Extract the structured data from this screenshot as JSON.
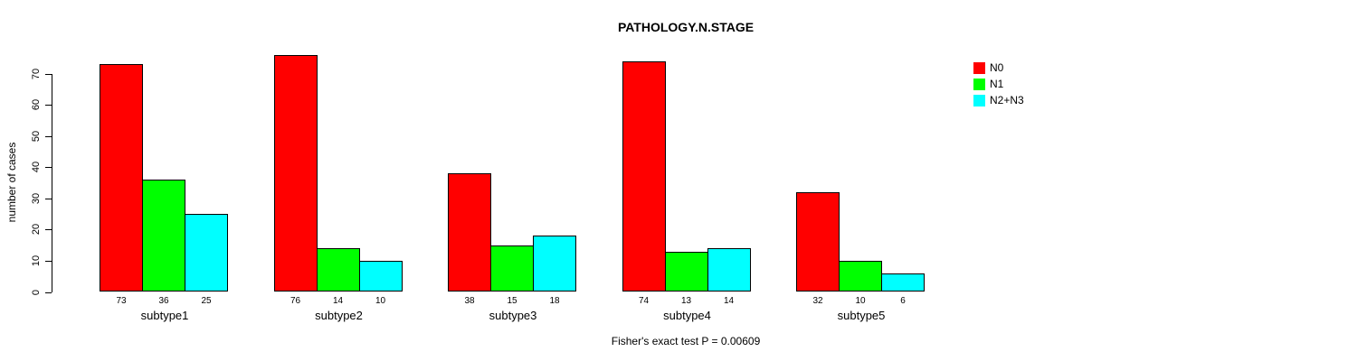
{
  "chart_data": {
    "type": "bar",
    "title": "PATHOLOGY.N.STAGE",
    "ylabel": "number of cases",
    "xlabel": "",
    "annotation": "Fisher's exact test P = 0.00609",
    "categories": [
      "subtype1",
      "subtype2",
      "subtype3",
      "subtype4",
      "subtype5"
    ],
    "series": [
      {
        "name": "N0",
        "color": "#ff0000",
        "values": [
          73,
          76,
          38,
          74,
          32
        ]
      },
      {
        "name": "N1",
        "color": "#00ff00",
        "values": [
          36,
          14,
          15,
          13,
          10
        ]
      },
      {
        "name": "N2+N3",
        "color": "#00ffff",
        "values": [
          25,
          10,
          18,
          14,
          6
        ]
      }
    ],
    "bar_value_labels_shown": true,
    "yticks": [
      0,
      10,
      20,
      30,
      40,
      50,
      60,
      70
    ],
    "ylim": [
      0,
      78
    ],
    "grid": false,
    "legend_position": "top-right",
    "background": "#ffffff",
    "axis_color": "#000000"
  }
}
